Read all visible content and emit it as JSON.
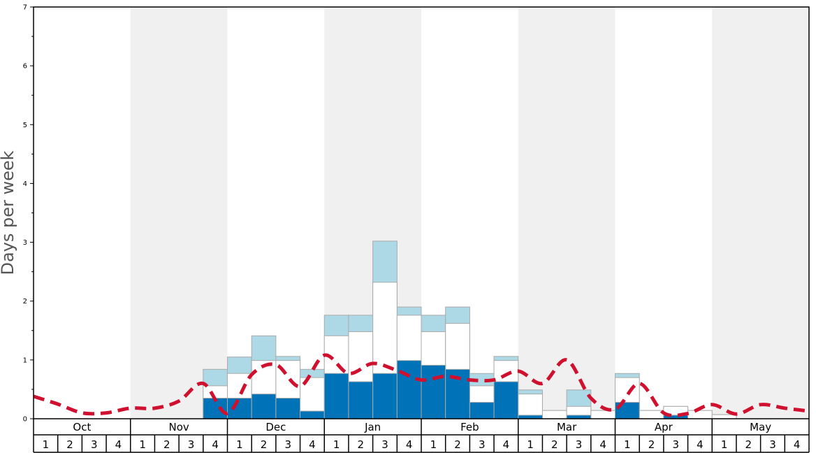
{
  "chart_data": {
    "type": "bar",
    "ylabel": "Days per week",
    "ylim": [
      0,
      7
    ],
    "yticks": [
      0,
      1,
      2,
      3,
      4,
      5,
      6,
      7
    ],
    "months": [
      "Oct",
      "Nov",
      "Dec",
      "Jan",
      "Feb",
      "Mar",
      "Apr",
      "May"
    ],
    "week_labels": [
      "1",
      "2",
      "3",
      "4"
    ],
    "shaded_months": [
      "Nov",
      "Jan",
      "Mar",
      "May"
    ],
    "colors": {
      "dark": "#0072b8",
      "white": "#ffffff",
      "light": "#add8e6",
      "line": "#d0102f",
      "shade": "#f0f0f0",
      "bar_border": "#aaaaaa"
    },
    "series": [
      {
        "key": "dark",
        "values": [
          0,
          0,
          0,
          0,
          0,
          0,
          0,
          0.35,
          0.35,
          0.42,
          0.35,
          0.13,
          0.77,
          0.63,
          0.77,
          0.99,
          0.91,
          0.84,
          0.28,
          0.63,
          0.06,
          0,
          0.06,
          0,
          0.28,
          0,
          0.06,
          0,
          0,
          0,
          0,
          0
        ]
      },
      {
        "key": "white",
        "values": [
          0,
          0,
          0,
          0,
          0,
          0,
          0,
          0.56,
          0.77,
          0.99,
          0.99,
          0.7,
          1.41,
          1.48,
          2.32,
          1.76,
          1.48,
          1.62,
          0.56,
          0.99,
          0.42,
          0.14,
          0.21,
          0.14,
          0.7,
          0.14,
          0.21,
          0.14,
          0.07,
          0,
          0,
          0
        ]
      },
      {
        "key": "light",
        "values": [
          0,
          0,
          0,
          0,
          0,
          0,
          0,
          0.84,
          1.05,
          1.41,
          1.06,
          0.84,
          1.76,
          1.76,
          3.02,
          1.9,
          1.76,
          1.9,
          0.77,
          1.06,
          0.49,
          0.14,
          0.49,
          0.14,
          0.77,
          0.14,
          0.21,
          0.14,
          0.07,
          0,
          0,
          0
        ]
      }
    ],
    "avg_line": [
      0.38,
      0.25,
      0.1,
      0.1,
      0.18,
      0.18,
      0.3,
      0.6,
      0.09,
      0.75,
      0.92,
      0.55,
      1.08,
      0.77,
      0.94,
      0.82,
      0.66,
      0.72,
      0.66,
      0.66,
      0.81,
      0.6,
      1.0,
      0.35,
      0.16,
      0.6,
      0.1,
      0.09,
      0.24,
      0.08,
      0.24,
      0.18,
      0.13
    ]
  }
}
